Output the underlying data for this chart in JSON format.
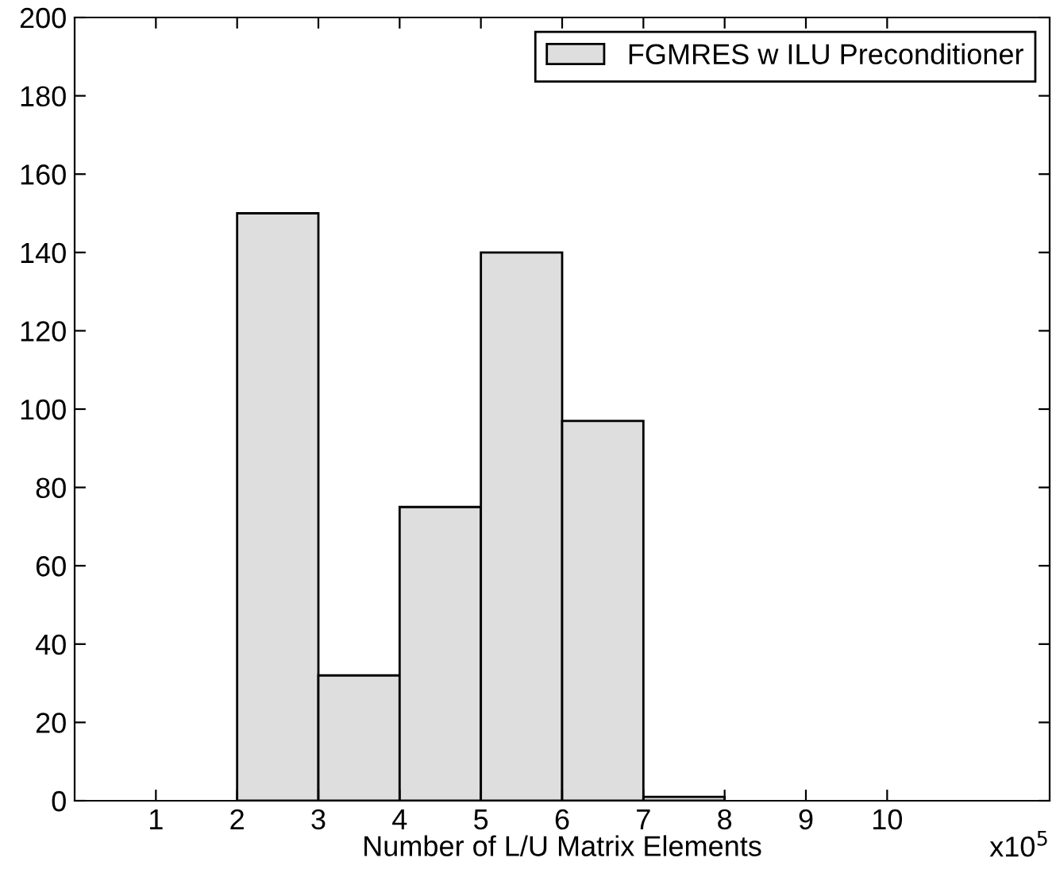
{
  "chart_data": {
    "type": "histogram",
    "xlabel": "Number of L/U Matrix Elements",
    "bins": [
      2,
      3,
      4,
      5,
      6,
      7,
      8
    ],
    "series": [
      {
        "name": "FGMRES w ILU Preconditioner",
        "color": "#dedede",
        "values": [
          150,
          32,
          75,
          140,
          97,
          1
        ]
      }
    ],
    "xlim": [
      0,
      12
    ],
    "xticks": [
      1,
      2,
      3,
      4,
      5,
      6,
      7,
      8,
      9,
      10
    ],
    "ylim": [
      0,
      200
    ],
    "yticks": [
      0,
      20,
      40,
      60,
      80,
      100,
      120,
      140,
      160,
      180,
      200
    ],
    "annotations": [
      "x10$^{5}$"
    ],
    "legend": "top right",
    "grid": false
  }
}
